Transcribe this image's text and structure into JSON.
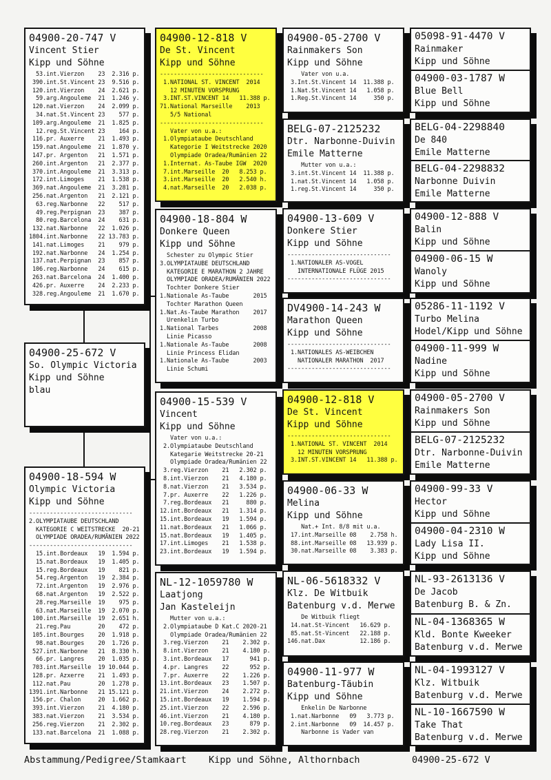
{
  "colors": {
    "highlight": "#ffff40",
    "box_background": "#fcfcfb",
    "line": "#131313"
  },
  "footer": {
    "left": "Abstammung/Pedigree/Stamkaart",
    "center": "Kipp und Söhne, Althornbach",
    "right": "04900-25-672 V"
  },
  "boxes": {
    "a1": {
      "ring": "04900-20-747 V",
      "name": "Vincent Stier",
      "fancier": "Kipp und Söhne",
      "body": [
        "  53.int.Vierzon    23  2.316 p.",
        " 390.int.St.Vincent 23  9.516 p.",
        " 120.int.Vierzon    24  2.621 p.",
        "  59.arg.Angouleme  21  1.246 y.",
        " 120.nat.Vierzon    24  2.099 p.",
        "  34.nat.St.Vincent 23    577 p.",
        " 109.arg.Angouleme  21  1.825 p.",
        "  12.reg.St.Vincent 23    164 p.",
        " 116.pr. Auxerre    21  1.493 p.",
        " 159.nat.Angouleme  21  1.870 y.",
        " 147.pr. Argenton   21  1.571 p.",
        " 260.int.Argenton   21  2.377 p.",
        " 370.int.Angouleme  21  3.313 p.",
        " 172.int.Limoges    21  1.538 p.",
        " 369.nat.Angouleme  21  3.281 p.",
        " 256.nat.Argenton   21  2.121 p.",
        "  63.reg.Narbonne   22    517 p.",
        "  49.reg.Perpignan  23    387 p.",
        "  80.reg.Barcelona  24    631 p.",
        " 132.nat.Narbonne   22  1.026 p.",
        "1804.int.Narbonne   22 13.783 p.",
        " 141.nat.Limoges    21    979 p.",
        " 192.nat.Narbonne   24  1.254 p.",
        " 137.nat.Perpignan  23    857 p.",
        " 106.reg.Narbonne   24    615 p.",
        " 263.nat.Barcelona  24  1.400 p.",
        " 426.pr. Auxerre    24  2.233 p.",
        " 328.reg.Angouleme  21  1.670 p."
      ]
    },
    "a2": {
      "ring": "04900-25-672 V",
      "name": "So. Olympic Victoria",
      "fancier": "Kipp und Söhne",
      "extra": "blau"
    },
    "a3": {
      "ring": "04900-18-594 W",
      "name": "Olympic Victoria",
      "fancier": "Kipp und Söhne",
      "body": [
        "------------------------------",
        "2.OLYMPIATAUBE DEUTSCHLAND",
        "  KATEGORIE C WEITSTRECKE  20-21",
        "  OLYMPIADE ORADEA/RUMÄNIEN 2022",
        "------------------------------",
        "  15.int.Bordeaux   19  1.594 p.",
        "  15.nat.Bordeaux   19  1.405 p.",
        "  15.reg.Bordeaux   19    821 p.",
        "  54.reg.Argenton   19  2.384 p.",
        "  72.int.Argenton   19  2.976 p.",
        "  68.nat.Argenton   19  2.522 p.",
        "  28.reg.Marseille  19    975 p.",
        "  63.nat.Marseille  19  2.070 p.",
        " 100.int.Marseille  19  2.651 h.",
        "  21.reg.Pau        20    472 p.",
        " 105.int.Bourges    20  1.918 p.",
        "  98.nat.Bourges    20  1.726 p.",
        " 527.int.Narbonne   21  8.330 h.",
        "  66.pr. Langres    20  1.035 p.",
        " 703.int.Marseille  19 10.044 p.",
        " 128.pr. Azxerre    21  1.493 p.",
        " 112.nat.Pau        20  1.278 p.",
        "1391.int.Narbonne   21 15.121 p.",
        " 156.pr. Chalon     20  1.662 p.",
        " 393.int.Vierzon    21  4.180 p.",
        " 383.nat.Vierzon    21  3.534 p.",
        " 256.reg.Vierzon    21  2.302 p.",
        " 133.nat.Barcelona  21  1.088 p."
      ]
    },
    "b1": {
      "ring": "04900-12-818 V",
      "name": "De St. Vincent",
      "fancier": "Kipp und Söhne",
      "body": [
        "------------------------------",
        " 1.NATIONAL ST. VINCENT  2014",
        "   12 MINUTEN VORSPRUNG",
        " 3.INT.ST.VINCENT 14   11.388 p.",
        "71.National Marseille    2013",
        "   5/5 National",
        "------------------------------",
        "   Vater von u.a.:",
        " 1.Olympiataube Deutschland",
        "   Kategorie I Weitstrecke 2020",
        "   Olympiade Oradea/Rumänien 22",
        " 1.Internat. As-Taube IGW  2020",
        " 7.int.Marseille  20   8.253 p.",
        " 3.int.Marseille  20   2.540 h.",
        " 4.nat.Marseille  20   2.038 p."
      ]
    },
    "b2": {
      "ring": "04900-18-804 W",
      "name": "Donkere Queen",
      "fancier": "Kipp und Söhne",
      "body": [
        "  Schester zu Olympic Stier",
        "3.OLYMPIATAUBE DEUTSCHLAND",
        "  KATEGORIE E MARATHON 2 JAHRE",
        "  OLYMPIADE ORADEA/RUMÄNIEN 2022",
        "  Tochter Donkere Stier",
        "1.Nationale As-Taube       2015",
        "  Tochter Marathon Queen",
        "1.Nat.As-Taube Marathon    2017",
        "  Urenkelin Turbo",
        "1.National Tarbes          2008",
        "  Linie Picasso",
        "1.Nationale As-Taube       2008",
        "  Linie Princess Elidan",
        "1.Nationale As-Taube       2003",
        "  Linie Schumi"
      ]
    },
    "b3": {
      "ring": "04900-15-539 V",
      "name": "Vincent",
      "fancier": "Kipp und Söhne",
      "body": [
        "   Vater von u.a.:",
        " 2.Olympiataube Deutschland",
        "   Kategarie Weitstrecke 20-21",
        "   Olympiade Oradea/Rumänien 22",
        " 3.reg.Vierzon    21   2.302 p.",
        " 8.int.Vierzon    21   4.180 p.",
        " 8.nat.Vierzon    21   3.534 p.",
        " 7.pr. Auxerre    22   1.226 p.",
        " 7.reg.Bordeaux   21     880 p.",
        "12.int.Bordeaux   21   1.314 p.",
        "15.int.Bordeaux   19   1.594 p.",
        "11.nat.Bordeaux   21   1.066 p.",
        "15.nat.Bordeaux   19   1.405 p.",
        "17.int.Limoges    21   1.538 p.",
        "23.int.Bordeaux   19   1.594 p."
      ]
    },
    "b4": {
      "ring": "NL-12-1059780 W",
      "name": "Laatjong",
      "fancier": "Jan Kasteleijn",
      "body": [
        "   Mutter von u.a.:",
        " 2.Olympiataube D Kat.C 2020-21",
        "   Olympiade Oradea/Rumänien 22",
        " 3.reg.Vierzon    21    2.302 p.",
        " 8.int.Vierzon    21    4.180 p.",
        " 3.int.Bordeaux   17      941 p.",
        " 4.pr. Langres    22      952 p.",
        " 7.pr. Auxerre    22    1.226 p.",
        "13.int.Bordeaux   23    1.507 p.",
        "21.int.Vierzon    24    2.272 p.",
        "15.int.Bordeaux   19    1.594 p.",
        "25.int.Vierzon    22    2.596 p.",
        "46.int.Vierzon    21    4.180 p.",
        "10.reg.Bordeaux   23      879 p.",
        "28.reg.Vierzon    21    2.302 p."
      ]
    },
    "c1": {
      "ring": "04900-05-2700 V",
      "name": "Rainmakers Son",
      "fancier": "Kipp und Söhne",
      "body": [
        "    Vater von u.a.",
        " 3.Int.St.Vincent 14  11.388 p.",
        " 1.Nat.St.Vincent 14   1.058 p.",
        " 1.Reg.St.Vincent 14     350 p."
      ]
    },
    "c2": {
      "ring": "BELG-07-2125232",
      "name": "Dtr. Narbonne-Duivin",
      "fancier": "Emile Matterne",
      "body": [
        "    Mutter von u.a.:",
        " 3.int.St.Vincent 14  11.388 p.",
        " 1.nat.St.Vincent 14   1.058 p.",
        " 1.reg.St.Vincent 14     350 p."
      ]
    },
    "c3": {
      "ring": "04900-13-609 V",
      "name": "Donkere Stier",
      "fancier": "Kipp und Söhne",
      "body": [
        "------------------------------",
        " 1.NATIONALER AS-VOGEL",
        "   INTERNATIONALE FLÜGE 2015",
        "------------------------------"
      ]
    },
    "c4": {
      "ring": "DV4900-14-243 W",
      "name": "Marathon Queen",
      "fancier": "Kipp und Söhne",
      "body": [
        "------------------------------",
        " 1.NATIONALES AS-WEIBCHEN",
        "   NATIONALER MARATHON  2017",
        "------------------------------"
      ]
    },
    "c5": {
      "ring": "04900-12-818 V",
      "name": "De St. Vincent",
      "fancier": "Kipp und Söhne",
      "body": [
        "------------------------------",
        " 1.NATIONAL ST. VINCENT  2014",
        "   12 MINUTEN VORSPRUNG",
        " 3.INT.ST.VINCENT 14   11.388 p."
      ]
    },
    "c6": {
      "ring": "04900-06-33 W",
      "name": "Melina",
      "fancier": "Kipp und Söhne",
      "body": [
        "    Nat.+ Int. 8/8 mit u.a.",
        " 17.int.Marseille 08    2.758 h.",
        " 88.int.Marseille 08   13.939 p.",
        " 30.nat.Marseille 08    3.383 p."
      ]
    },
    "c7": {
      "ring": "NL-06-5618332 V",
      "name": "Klz. De Witbuik",
      "fancier": "Batenburg v.d. Merwe",
      "body": [
        "    De Witbuik fliegt",
        " 14.nat.St-Vincent   16.629 p.",
        " 85.nat.St-Vincent   22.188 p.",
        "146.nat.Dax          12.186 p."
      ]
    },
    "c8": {
      "ring": "04900-11-977 W",
      "name": "Batenburg-Täubin",
      "fancier": "Kipp und Söhne",
      "body": [
        "    Enkelin De Narbonne",
        " 1.nat.Narbonne   09   3.773 p.",
        " 2.int.Narbonne   09  14.457 p.",
        "    Narbonne is Vader van"
      ]
    }
  },
  "pairs": [
    {
      "top": {
        "ring": "05098-91-4470 V",
        "name": "Rainmaker",
        "fancier": "Kipp und Söhne"
      },
      "bottom": {
        "ring": "04900-03-1787 W",
        "name": "Blue Bell",
        "fancier": "Kipp und Söhne"
      }
    },
    {
      "top": {
        "ring": "BELG-04-2298840",
        "name": "De 840",
        "fancier": "Emile Matterne"
      },
      "bottom": {
        "ring": "BELG-04-2298832",
        "name": "Narbonne Duivin",
        "fancier": "Emile Matterne"
      }
    },
    {
      "top": {
        "ring": "04900-12-888 V",
        "name": "Balin",
        "fancier": "Kipp und Söhne"
      },
      "bottom": {
        "ring": "04900-06-15 W",
        "name": "Wanoly",
        "fancier": "Kipp und Söhne"
      }
    },
    {
      "top": {
        "ring": "05286-11-1192 V",
        "name": "Turbo Melina",
        "fancier": "Hodel/Kipp und Söhne"
      },
      "bottom": {
        "ring": "04900-11-999 W",
        "name": "Nadine",
        "fancier": "Kipp und Söhne"
      }
    },
    {
      "top": {
        "ring": "04900-05-2700 V",
        "name": "Rainmakers Son",
        "fancier": "Kipp und Söhne"
      },
      "bottom": {
        "ring": "BELG-07-2125232",
        "name": "Dtr. Narbonne-Duivin",
        "fancier": "Emile Matterne"
      }
    },
    {
      "top": {
        "ring": "04900-99-33 V",
        "name": "Hector",
        "fancier": "Kipp und Söhne"
      },
      "bottom": {
        "ring": "04900-04-2310 W",
        "name": "Lady Lisa II.",
        "fancier": "Kipp und Söhne"
      }
    },
    {
      "top": {
        "ring": "NL-93-2613136 V",
        "name": "De Jacob",
        "fancier": "Batenburg B. & Zn."
      },
      "bottom": {
        "ring": "NL-04-1368365 W",
        "name": "Kld. Bonte Kweeker",
        "fancier": "Batenburg v.d. Merwe"
      }
    },
    {
      "top": {
        "ring": "NL-04-1993127 V",
        "name": "Klz. Witbuik",
        "fancier": "Batenburg v.d. Merwe"
      },
      "bottom": {
        "ring": "NL-10-1667590 W",
        "name": "Take That",
        "fancier": "Batenburg v.d. Merwe"
      }
    }
  ]
}
